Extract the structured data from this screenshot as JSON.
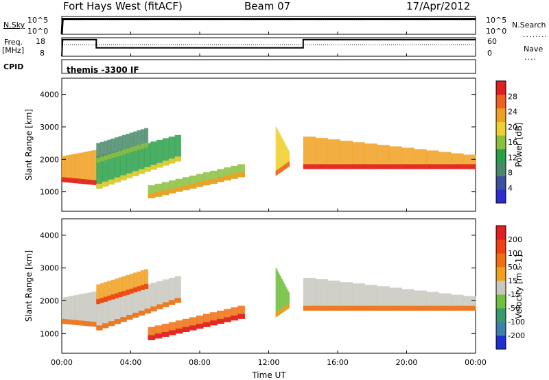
{
  "header": {
    "station": "Fort Hays West (fitACF)",
    "beam": "Beam 07",
    "date": "17/Apr/2012"
  },
  "strip_labels": {
    "nsky": "N.Sky",
    "nsearch": "N.Search",
    "freq_line1": "Freq.",
    "freq_line2": "[MHz]",
    "nave": "Nave",
    "cpid": "CPID",
    "cpid_value": "themis -3300 IF"
  },
  "chart_data": [
    {
      "type": "line",
      "panel": "noise",
      "left_ticks": [
        "10^5",
        "10^0"
      ],
      "right_ticks": [
        "10^5",
        "10^0"
      ],
      "series": [
        {
          "name": "N.Sky",
          "style": "solid",
          "x_hours": [
            0,
            0.05,
            24
          ],
          "y_log10": [
            0,
            4.3,
            4.3
          ]
        },
        {
          "name": "N.Search",
          "style": "dotted",
          "x_hours": [
            0,
            24
          ],
          "y_log10": [
            4.1,
            4.1
          ]
        }
      ]
    },
    {
      "type": "line",
      "panel": "frequency",
      "left_ticks": [
        18,
        8
      ],
      "right_ticks": [
        60,
        0
      ],
      "ylim_left": [
        8,
        18
      ],
      "ylim_right": [
        0,
        60
      ],
      "series": [
        {
          "name": "Freq.",
          "style": "solid",
          "x_hours": [
            0,
            0.05,
            2.0,
            2.0,
            14.0,
            14.0,
            24
          ],
          "y": [
            8,
            17,
            17,
            12.5,
            12.5,
            17,
            17
          ]
        },
        {
          "name": "Nave",
          "style": "dotted",
          "x_hours": [
            0,
            24
          ],
          "y_right": [
            37,
            37
          ]
        }
      ]
    },
    {
      "type": "heatmap",
      "panel": "power",
      "ylabel": "Slant Range [km]",
      "y_ticks": [
        1000,
        2000,
        3000,
        4000
      ],
      "ylim": [
        400,
        4500
      ],
      "xlim": [
        0,
        24
      ],
      "colorbar": {
        "label": "Power [dB]",
        "ticks": [
          4,
          8,
          12,
          16,
          20,
          24,
          28
        ]
      }
    },
    {
      "type": "heatmap",
      "panel": "velocity",
      "ylabel": "Slant Range [km]",
      "y_ticks": [
        1000,
        2000,
        3000,
        4000
      ],
      "ylim": [
        400,
        4500
      ],
      "xlim": [
        0,
        24
      ],
      "x_ticks": [
        "00:00",
        "04:00",
        "08:00",
        "12:00",
        "16:00",
        "20:00",
        "00:00"
      ],
      "xlabel": "Time UT",
      "colorbar": {
        "label": "Velocity [m s-1]",
        "ticks": [
          200,
          100,
          50,
          15,
          -15,
          -50,
          -100,
          -200
        ]
      }
    }
  ],
  "colors": {
    "power_scale": [
      "#2c2cd0",
      "#3c50a0",
      "#4a8a6a",
      "#2aa04a",
      "#8ac040",
      "#f0d030",
      "#f0a020",
      "#f06020",
      "#e02020"
    ],
    "velocity_scale": [
      "#1f2fd0",
      "#3f7fb0",
      "#3a9a6a",
      "#70c040",
      "#c8c8c0",
      "#f0a020",
      "#f07010",
      "#f04010",
      "#e02020"
    ]
  }
}
